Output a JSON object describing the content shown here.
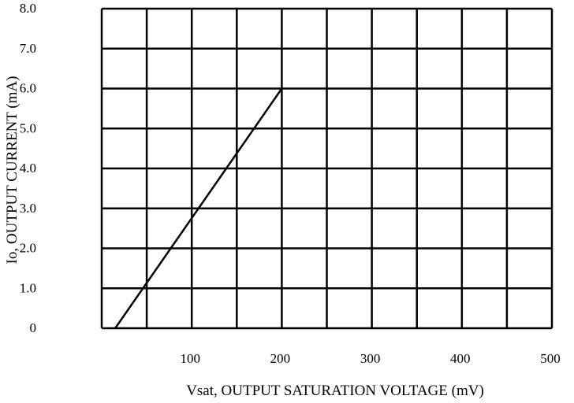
{
  "chart_data": {
    "type": "line",
    "xlabel": "Vsat, OUTPUT SATURATION VOLTAGE (mV)",
    "ylabel": "Io, OUTPUT CURRENT (mA)",
    "xlim": [
      0,
      500
    ],
    "ylim": [
      0,
      8
    ],
    "x_tick_labels": [
      "100",
      "200",
      "300",
      "400",
      "500"
    ],
    "y_tick_labels": [
      "0",
      "1.0",
      "2.0",
      "3.0",
      "4.0",
      "5.0",
      "6.0",
      "7.0",
      "8.0"
    ],
    "grid": true,
    "series": [
      {
        "x": [
          15,
          200
        ],
        "y": [
          0,
          6.0
        ]
      }
    ]
  }
}
